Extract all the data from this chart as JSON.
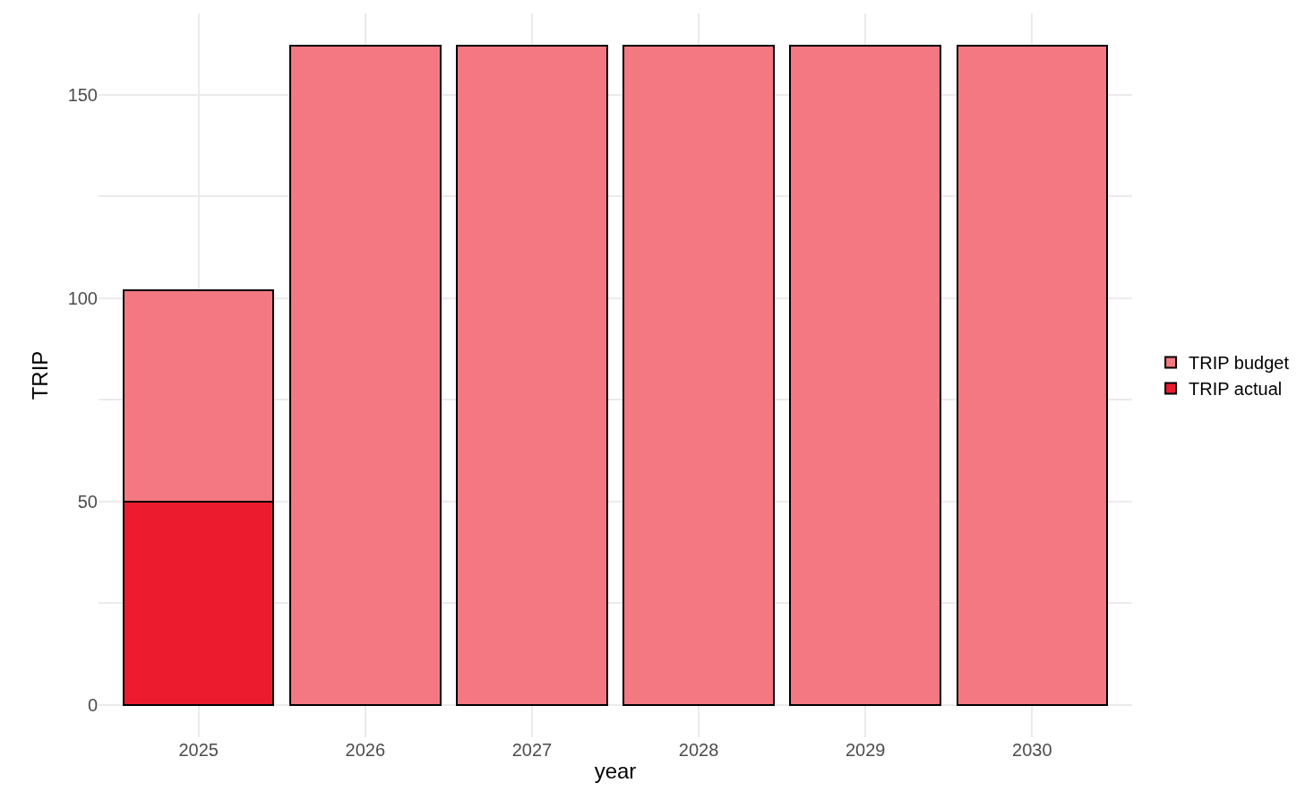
{
  "chart_data": {
    "type": "bar",
    "xlabel": "year",
    "ylabel": "TRIP",
    "categories": [
      "2025",
      "2026",
      "2027",
      "2028",
      "2029",
      "2030"
    ],
    "stacked": true,
    "series": [
      {
        "name": "TRIP actual",
        "color": "#ec1c2e",
        "values": [
          50,
          null,
          null,
          null,
          null,
          null
        ]
      },
      {
        "name": "TRIP budget",
        "color": "#f37882",
        "values": [
          52,
          162,
          162,
          162,
          162,
          162
        ]
      }
    ],
    "ylim": [
      -8,
      170
    ],
    "yticks": [
      0,
      {
        "value": 25,
        "label": null
      },
      50,
      {
        "value": 75,
        "label": null
      },
      100,
      {
        "value": 125,
        "label": null
      },
      150
    ],
    "grid": true,
    "legend": "right"
  }
}
